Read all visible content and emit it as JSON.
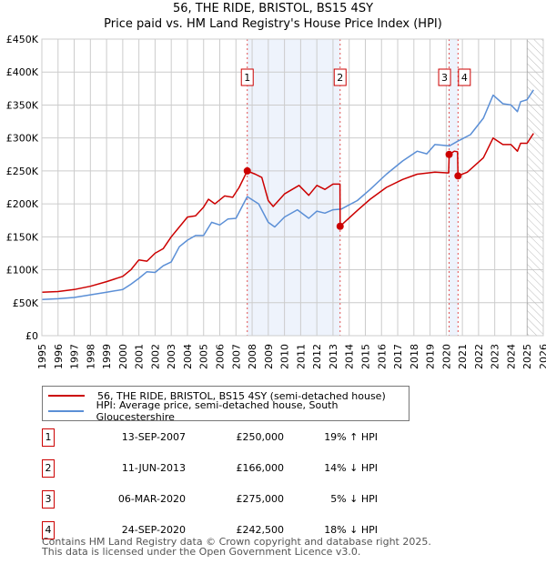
{
  "title": "56, THE RIDE, BRISTOL, BS15 4SY",
  "subtitle": "Price paid vs. HM Land Registry's House Price Index (HPI)",
  "colors": {
    "property": "#cc0000",
    "hpi": "#5b8fd6",
    "shade": "#eef3fc",
    "grid": "#cccccc"
  },
  "chart_data": {
    "type": "line",
    "title": "56, THE RIDE, BRISTOL, BS15 4SY",
    "xlim": [
      1995,
      2026
    ],
    "ylim": [
      0,
      450000
    ],
    "grid": true,
    "x_ticks": [
      "1995",
      "1996",
      "1997",
      "1998",
      "1999",
      "2000",
      "2001",
      "2002",
      "2003",
      "2004",
      "2005",
      "2006",
      "2007",
      "2008",
      "2009",
      "2010",
      "2011",
      "2012",
      "2013",
      "2014",
      "2015",
      "2016",
      "2017",
      "2018",
      "2019",
      "2020",
      "2021",
      "2022",
      "2023",
      "2024",
      "2025",
      "2026"
    ],
    "y_ticks": [
      {
        "value": 0,
        "label": "£0"
      },
      {
        "value": 50000,
        "label": "£50K"
      },
      {
        "value": 100000,
        "label": "£100K"
      },
      {
        "value": 150000,
        "label": "£150K"
      },
      {
        "value": 200000,
        "label": "£200K"
      },
      {
        "value": 250000,
        "label": "£250K"
      },
      {
        "value": 300000,
        "label": "£300K"
      },
      {
        "value": 350000,
        "label": "£350K"
      },
      {
        "value": 400000,
        "label": "£400K"
      },
      {
        "value": 450000,
        "label": "£450K"
      }
    ],
    "forecast_from": 2025.0,
    "shaded_ranges": [
      [
        2007.7,
        2013.44
      ],
      [
        2020.18,
        2020.73
      ]
    ],
    "series": [
      {
        "name": "56, THE RIDE, BRISTOL, BS15 4SY (semi-detached house)",
        "color": "#cc0000",
        "x": [
          1995,
          1996,
          1997,
          1998,
          1999,
          2000,
          2000.5,
          2001,
          2001.5,
          2002,
          2002.5,
          2003,
          2003.5,
          2004,
          2004.5,
          2005,
          2005.3,
          2005.7,
          2006.3,
          2006.8,
          2007.2,
          2007.7,
          2008.2,
          2008.6,
          2009.0,
          2009.3,
          2010.0,
          2010.9,
          2011.5,
          2012.0,
          2012.5,
          2013.0,
          2013.43,
          2013.44,
          2014.5,
          2015.3,
          2016.3,
          2017.3,
          2018.2,
          2019.3,
          2020.15,
          2020.18,
          2020.5,
          2020.7,
          2020.73,
          2021.3,
          2022.3,
          2022.9,
          2023.5,
          2024.0,
          2024.4,
          2024.6,
          2025.0,
          2025.4
        ],
        "values": [
          66000,
          67000,
          70000,
          75000,
          82000,
          90000,
          100000,
          115000,
          113000,
          125000,
          132000,
          150000,
          165000,
          180000,
          182000,
          195000,
          207000,
          200000,
          212000,
          210000,
          225000,
          250000,
          245000,
          240000,
          205000,
          196000,
          215000,
          228000,
          213000,
          228000,
          222000,
          230000,
          230000,
          166000,
          190000,
          207000,
          225000,
          237000,
          245000,
          248000,
          247000,
          275000,
          280000,
          279000,
          242500,
          248000,
          270000,
          300000,
          290000,
          290000,
          280000,
          292000,
          292000,
          307000
        ]
      },
      {
        "name": "HPI: Average price, semi-detached house, South Gloucestershire",
        "color": "#5b8fd6",
        "x": [
          1995,
          1996,
          1997,
          1998,
          1999,
          2000,
          2000.5,
          2001,
          2001.5,
          2002,
          2002.5,
          2003,
          2003.5,
          2004,
          2004.5,
          2005,
          2005.5,
          2006,
          2006.5,
          2007,
          2007.7,
          2008.4,
          2009.0,
          2009.4,
          2010.0,
          2010.8,
          2011.5,
          2012.0,
          2012.5,
          2013.0,
          2013.5,
          2014.5,
          2015.3,
          2016.3,
          2017.3,
          2018.2,
          2018.8,
          2019.3,
          2020.2,
          2020.7,
          2021.5,
          2022.3,
          2022.9,
          2023.5,
          2024.0,
          2024.4,
          2024.6,
          2025.0,
          2025.4
        ],
        "values": [
          55000,
          56000,
          58000,
          62000,
          66000,
          70000,
          78000,
          87000,
          97000,
          96000,
          106000,
          112000,
          135000,
          145000,
          152000,
          152000,
          172000,
          168000,
          177000,
          178000,
          211000,
          200000,
          172000,
          165000,
          180000,
          191000,
          178000,
          189000,
          186000,
          191000,
          192000,
          205000,
          222000,
          245000,
          265000,
          280000,
          276000,
          290000,
          288000,
          295000,
          305000,
          330000,
          365000,
          352000,
          350000,
          340000,
          355000,
          358000,
          373000
        ]
      }
    ],
    "sales": [
      {
        "label": "1",
        "x": 2007.7,
        "value": 250000
      },
      {
        "label": "2",
        "x": 2013.44,
        "value": 166000
      },
      {
        "label": "3",
        "x": 2020.18,
        "value": 275000
      },
      {
        "label": "4",
        "x": 2020.73,
        "value": 242500
      }
    ]
  },
  "legend": {
    "property": "56, THE RIDE, BRISTOL, BS15 4SY (semi-detached house)",
    "hpi": "HPI: Average price, semi-detached house, South Gloucestershire"
  },
  "transactions": [
    {
      "num": "1",
      "date": "13-SEP-2007",
      "price": "£250,000",
      "hpi": "19% ↑ HPI"
    },
    {
      "num": "2",
      "date": "11-JUN-2013",
      "price": "£166,000",
      "hpi": "14% ↓ HPI"
    },
    {
      "num": "3",
      "date": "06-MAR-2020",
      "price": "£275,000",
      "hpi": "5% ↓ HPI"
    },
    {
      "num": "4",
      "date": "24-SEP-2020",
      "price": "£242,500",
      "hpi": "18% ↓ HPI"
    }
  ],
  "footer": {
    "line1": "Contains HM Land Registry data © Crown copyright and database right 2025.",
    "line2": "This data is licensed under the Open Government Licence v3.0."
  }
}
